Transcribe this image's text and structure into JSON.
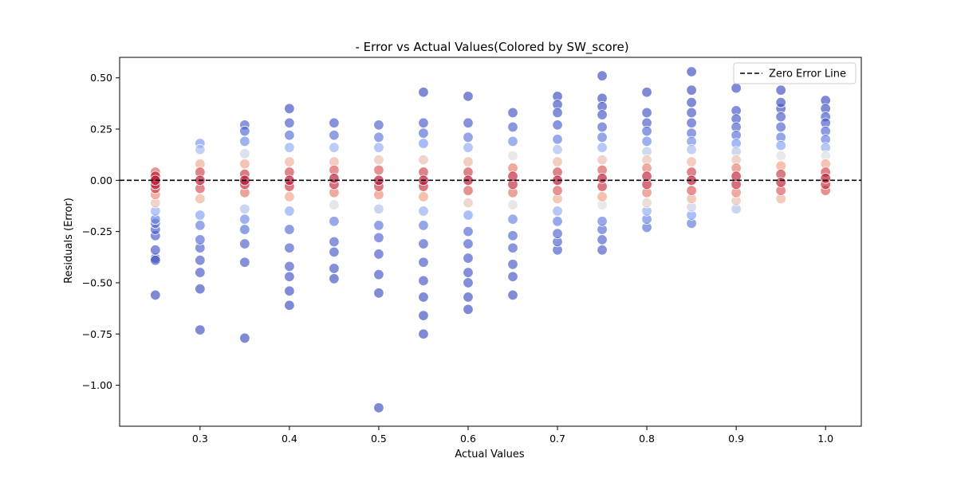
{
  "chart_data": {
    "type": "scatter",
    "title": "- Error vs Actual Values(Colored by SW_score)",
    "xlabel": "Actual Values",
    "ylabel": "Residuals (Error)",
    "xlim": [
      0.21,
      1.04
    ],
    "ylim": [
      -1.2,
      0.6
    ],
    "xticks": [
      0.3,
      0.4,
      0.5,
      0.6,
      0.7,
      0.8,
      0.9,
      1.0
    ],
    "xtick_labels": [
      "0.3",
      "0.4",
      "0.5",
      "0.6",
      "0.7",
      "0.8",
      "0.9",
      "1.0"
    ],
    "yticks": [
      0.5,
      0.25,
      0.0,
      -0.25,
      -0.5,
      -0.75,
      -1.0
    ],
    "ytick_labels": [
      "0.50",
      "0.25",
      "0.00",
      "−0.25",
      "−0.50",
      "−0.75",
      "−1.00"
    ],
    "grid": false,
    "colormap": "coolwarm",
    "point_alpha": 0.65,
    "reference_line": {
      "y": 0.0,
      "label": "Zero Error Line",
      "color": "#000000",
      "style": "dashed"
    },
    "legend": {
      "position": "top-right",
      "entries": [
        "Zero Error Line"
      ]
    },
    "color_scale_note": "points near zero error are red (high score), points far from zero are blue (low score)",
    "points": [
      {
        "x": 0.25,
        "y": -0.56,
        "c": 0.0
      },
      {
        "x": 0.25,
        "y": -0.39,
        "c": 0.02
      },
      {
        "x": 0.25,
        "y": -0.38,
        "c": 0.0
      },
      {
        "x": 0.25,
        "y": -0.34,
        "c": 0.02
      },
      {
        "x": 0.25,
        "y": -0.27,
        "c": 0.03
      },
      {
        "x": 0.25,
        "y": -0.24,
        "c": 0.05
      },
      {
        "x": 0.25,
        "y": -0.21,
        "c": 0.08
      },
      {
        "x": 0.25,
        "y": -0.19,
        "c": 0.15
      },
      {
        "x": 0.25,
        "y": -0.15,
        "c": 0.3
      },
      {
        "x": 0.25,
        "y": -0.11,
        "c": 0.62
      },
      {
        "x": 0.25,
        "y": -0.07,
        "c": 0.78
      },
      {
        "x": 0.25,
        "y": -0.04,
        "c": 0.92
      },
      {
        "x": 0.25,
        "y": -0.02,
        "c": 0.97
      },
      {
        "x": 0.25,
        "y": 0.0,
        "c": 1.0
      },
      {
        "x": 0.25,
        "y": 0.02,
        "c": 0.97
      },
      {
        "x": 0.25,
        "y": 0.04,
        "c": 0.85
      },
      {
        "x": 0.3,
        "y": -0.73,
        "c": 0.0
      },
      {
        "x": 0.3,
        "y": -0.53,
        "c": 0.01
      },
      {
        "x": 0.3,
        "y": -0.45,
        "c": 0.02
      },
      {
        "x": 0.3,
        "y": -0.39,
        "c": 0.04
      },
      {
        "x": 0.3,
        "y": -0.33,
        "c": 0.06
      },
      {
        "x": 0.3,
        "y": -0.29,
        "c": 0.09
      },
      {
        "x": 0.3,
        "y": -0.22,
        "c": 0.14
      },
      {
        "x": 0.3,
        "y": -0.17,
        "c": 0.25
      },
      {
        "x": 0.3,
        "y": -0.09,
        "c": 0.68
      },
      {
        "x": 0.3,
        "y": -0.04,
        "c": 0.88
      },
      {
        "x": 0.3,
        "y": 0.0,
        "c": 1.0
      },
      {
        "x": 0.3,
        "y": 0.04,
        "c": 0.9
      },
      {
        "x": 0.3,
        "y": 0.08,
        "c": 0.7
      },
      {
        "x": 0.3,
        "y": 0.15,
        "c": 0.35
      },
      {
        "x": 0.3,
        "y": 0.18,
        "c": 0.22
      },
      {
        "x": 0.35,
        "y": -0.77,
        "c": 0.0
      },
      {
        "x": 0.35,
        "y": -0.4,
        "c": 0.02
      },
      {
        "x": 0.35,
        "y": -0.31,
        "c": 0.05
      },
      {
        "x": 0.35,
        "y": -0.24,
        "c": 0.1
      },
      {
        "x": 0.35,
        "y": -0.19,
        "c": 0.18
      },
      {
        "x": 0.35,
        "y": -0.14,
        "c": 0.38
      },
      {
        "x": 0.35,
        "y": -0.06,
        "c": 0.82
      },
      {
        "x": 0.35,
        "y": -0.02,
        "c": 0.95
      },
      {
        "x": 0.35,
        "y": 0.0,
        "c": 1.0
      },
      {
        "x": 0.35,
        "y": 0.03,
        "c": 0.92
      },
      {
        "x": 0.35,
        "y": 0.08,
        "c": 0.72
      },
      {
        "x": 0.35,
        "y": 0.13,
        "c": 0.45
      },
      {
        "x": 0.35,
        "y": 0.19,
        "c": 0.18
      },
      {
        "x": 0.35,
        "y": 0.24,
        "c": 0.08
      },
      {
        "x": 0.35,
        "y": 0.27,
        "c": 0.05
      },
      {
        "x": 0.4,
        "y": -0.61,
        "c": 0.0
      },
      {
        "x": 0.4,
        "y": -0.54,
        "c": 0.01
      },
      {
        "x": 0.4,
        "y": -0.47,
        "c": 0.02
      },
      {
        "x": 0.4,
        "y": -0.42,
        "c": 0.03
      },
      {
        "x": 0.4,
        "y": -0.33,
        "c": 0.05
      },
      {
        "x": 0.4,
        "y": -0.24,
        "c": 0.09
      },
      {
        "x": 0.4,
        "y": -0.15,
        "c": 0.28
      },
      {
        "x": 0.4,
        "y": -0.08,
        "c": 0.72
      },
      {
        "x": 0.4,
        "y": -0.03,
        "c": 0.93
      },
      {
        "x": 0.4,
        "y": 0.0,
        "c": 1.0
      },
      {
        "x": 0.4,
        "y": 0.04,
        "c": 0.9
      },
      {
        "x": 0.4,
        "y": 0.09,
        "c": 0.68
      },
      {
        "x": 0.4,
        "y": 0.16,
        "c": 0.3
      },
      {
        "x": 0.4,
        "y": 0.22,
        "c": 0.1
      },
      {
        "x": 0.4,
        "y": 0.28,
        "c": 0.04
      },
      {
        "x": 0.4,
        "y": 0.35,
        "c": 0.0
      },
      {
        "x": 0.45,
        "y": -0.48,
        "c": 0.01
      },
      {
        "x": 0.45,
        "y": -0.43,
        "c": 0.02
      },
      {
        "x": 0.45,
        "y": -0.35,
        "c": 0.04
      },
      {
        "x": 0.45,
        "y": -0.3,
        "c": 0.06
      },
      {
        "x": 0.45,
        "y": -0.2,
        "c": 0.14
      },
      {
        "x": 0.45,
        "y": -0.12,
        "c": 0.48
      },
      {
        "x": 0.45,
        "y": -0.06,
        "c": 0.8
      },
      {
        "x": 0.45,
        "y": -0.02,
        "c": 0.95
      },
      {
        "x": 0.45,
        "y": 0.01,
        "c": 0.98
      },
      {
        "x": 0.45,
        "y": 0.05,
        "c": 0.86
      },
      {
        "x": 0.45,
        "y": 0.09,
        "c": 0.66
      },
      {
        "x": 0.45,
        "y": 0.16,
        "c": 0.32
      },
      {
        "x": 0.45,
        "y": 0.22,
        "c": 0.1
      },
      {
        "x": 0.45,
        "y": 0.28,
        "c": 0.04
      },
      {
        "x": 0.5,
        "y": -1.11,
        "c": 0.0
      },
      {
        "x": 0.5,
        "y": -0.55,
        "c": 0.01
      },
      {
        "x": 0.5,
        "y": -0.46,
        "c": 0.02
      },
      {
        "x": 0.5,
        "y": -0.36,
        "c": 0.04
      },
      {
        "x": 0.5,
        "y": -0.28,
        "c": 0.07
      },
      {
        "x": 0.5,
        "y": -0.22,
        "c": 0.11
      },
      {
        "x": 0.5,
        "y": -0.14,
        "c": 0.38
      },
      {
        "x": 0.5,
        "y": -0.07,
        "c": 0.78
      },
      {
        "x": 0.5,
        "y": -0.03,
        "c": 0.93
      },
      {
        "x": 0.5,
        "y": 0.0,
        "c": 1.0
      },
      {
        "x": 0.5,
        "y": 0.05,
        "c": 0.86
      },
      {
        "x": 0.5,
        "y": 0.1,
        "c": 0.62
      },
      {
        "x": 0.5,
        "y": 0.16,
        "c": 0.3
      },
      {
        "x": 0.5,
        "y": 0.21,
        "c": 0.12
      },
      {
        "x": 0.5,
        "y": 0.27,
        "c": 0.05
      },
      {
        "x": 0.55,
        "y": -0.75,
        "c": 0.0
      },
      {
        "x": 0.55,
        "y": -0.66,
        "c": 0.0
      },
      {
        "x": 0.55,
        "y": -0.57,
        "c": 0.01
      },
      {
        "x": 0.55,
        "y": -0.49,
        "c": 0.02
      },
      {
        "x": 0.55,
        "y": -0.4,
        "c": 0.03
      },
      {
        "x": 0.55,
        "y": -0.31,
        "c": 0.05
      },
      {
        "x": 0.55,
        "y": -0.22,
        "c": 0.12
      },
      {
        "x": 0.55,
        "y": -0.15,
        "c": 0.3
      },
      {
        "x": 0.55,
        "y": -0.08,
        "c": 0.74
      },
      {
        "x": 0.55,
        "y": -0.03,
        "c": 0.93
      },
      {
        "x": 0.55,
        "y": 0.0,
        "c": 1.0
      },
      {
        "x": 0.55,
        "y": 0.04,
        "c": 0.9
      },
      {
        "x": 0.55,
        "y": 0.1,
        "c": 0.62
      },
      {
        "x": 0.55,
        "y": 0.18,
        "c": 0.22
      },
      {
        "x": 0.55,
        "y": 0.23,
        "c": 0.09
      },
      {
        "x": 0.55,
        "y": 0.28,
        "c": 0.04
      },
      {
        "x": 0.55,
        "y": 0.43,
        "c": 0.0
      },
      {
        "x": 0.6,
        "y": -0.63,
        "c": 0.0
      },
      {
        "x": 0.6,
        "y": -0.57,
        "c": 0.01
      },
      {
        "x": 0.6,
        "y": -0.5,
        "c": 0.02
      },
      {
        "x": 0.6,
        "y": -0.45,
        "c": 0.02
      },
      {
        "x": 0.6,
        "y": -0.38,
        "c": 0.03
      },
      {
        "x": 0.6,
        "y": -0.31,
        "c": 0.05
      },
      {
        "x": 0.6,
        "y": -0.25,
        "c": 0.08
      },
      {
        "x": 0.6,
        "y": -0.17,
        "c": 0.24
      },
      {
        "x": 0.6,
        "y": -0.11,
        "c": 0.6
      },
      {
        "x": 0.6,
        "y": -0.05,
        "c": 0.86
      },
      {
        "x": 0.6,
        "y": 0.0,
        "c": 1.0
      },
      {
        "x": 0.6,
        "y": 0.04,
        "c": 0.9
      },
      {
        "x": 0.6,
        "y": 0.09,
        "c": 0.66
      },
      {
        "x": 0.6,
        "y": 0.16,
        "c": 0.3
      },
      {
        "x": 0.6,
        "y": 0.21,
        "c": 0.12
      },
      {
        "x": 0.6,
        "y": 0.28,
        "c": 0.04
      },
      {
        "x": 0.6,
        "y": 0.41,
        "c": 0.0
      },
      {
        "x": 0.65,
        "y": -0.56,
        "c": 0.01
      },
      {
        "x": 0.65,
        "y": -0.47,
        "c": 0.02
      },
      {
        "x": 0.65,
        "y": -0.41,
        "c": 0.03
      },
      {
        "x": 0.65,
        "y": -0.33,
        "c": 0.05
      },
      {
        "x": 0.65,
        "y": -0.27,
        "c": 0.07
      },
      {
        "x": 0.65,
        "y": -0.19,
        "c": 0.16
      },
      {
        "x": 0.65,
        "y": -0.12,
        "c": 0.52
      },
      {
        "x": 0.65,
        "y": -0.06,
        "c": 0.82
      },
      {
        "x": 0.65,
        "y": -0.02,
        "c": 0.95
      },
      {
        "x": 0.65,
        "y": 0.02,
        "c": 0.96
      },
      {
        "x": 0.65,
        "y": 0.06,
        "c": 0.8
      },
      {
        "x": 0.65,
        "y": 0.12,
        "c": 0.5
      },
      {
        "x": 0.65,
        "y": 0.19,
        "c": 0.18
      },
      {
        "x": 0.65,
        "y": 0.26,
        "c": 0.06
      },
      {
        "x": 0.65,
        "y": 0.33,
        "c": 0.02
      },
      {
        "x": 0.7,
        "y": -0.34,
        "c": 0.04
      },
      {
        "x": 0.7,
        "y": -0.3,
        "c": 0.06
      },
      {
        "x": 0.7,
        "y": -0.26,
        "c": 0.07
      },
      {
        "x": 0.7,
        "y": -0.2,
        "c": 0.14
      },
      {
        "x": 0.7,
        "y": -0.15,
        "c": 0.3
      },
      {
        "x": 0.7,
        "y": -0.09,
        "c": 0.68
      },
      {
        "x": 0.7,
        "y": -0.05,
        "c": 0.86
      },
      {
        "x": 0.7,
        "y": 0.0,
        "c": 1.0
      },
      {
        "x": 0.7,
        "y": 0.04,
        "c": 0.9
      },
      {
        "x": 0.7,
        "y": 0.09,
        "c": 0.66
      },
      {
        "x": 0.7,
        "y": 0.15,
        "c": 0.36
      },
      {
        "x": 0.7,
        "y": 0.2,
        "c": 0.14
      },
      {
        "x": 0.7,
        "y": 0.27,
        "c": 0.05
      },
      {
        "x": 0.7,
        "y": 0.33,
        "c": 0.02
      },
      {
        "x": 0.7,
        "y": 0.37,
        "c": 0.01
      },
      {
        "x": 0.7,
        "y": 0.41,
        "c": 0.0
      },
      {
        "x": 0.75,
        "y": -0.34,
        "c": 0.04
      },
      {
        "x": 0.75,
        "y": -0.29,
        "c": 0.06
      },
      {
        "x": 0.75,
        "y": -0.24,
        "c": 0.09
      },
      {
        "x": 0.75,
        "y": -0.2,
        "c": 0.14
      },
      {
        "x": 0.75,
        "y": -0.12,
        "c": 0.5
      },
      {
        "x": 0.75,
        "y": -0.08,
        "c": 0.74
      },
      {
        "x": 0.75,
        "y": -0.03,
        "c": 0.93
      },
      {
        "x": 0.75,
        "y": 0.01,
        "c": 0.98
      },
      {
        "x": 0.75,
        "y": 0.05,
        "c": 0.86
      },
      {
        "x": 0.75,
        "y": 0.1,
        "c": 0.62
      },
      {
        "x": 0.75,
        "y": 0.16,
        "c": 0.3
      },
      {
        "x": 0.75,
        "y": 0.21,
        "c": 0.12
      },
      {
        "x": 0.75,
        "y": 0.26,
        "c": 0.06
      },
      {
        "x": 0.75,
        "y": 0.32,
        "c": 0.02
      },
      {
        "x": 0.75,
        "y": 0.36,
        "c": 0.01
      },
      {
        "x": 0.75,
        "y": 0.4,
        "c": 0.0
      },
      {
        "x": 0.75,
        "y": 0.51,
        "c": 0.0
      },
      {
        "x": 0.8,
        "y": -0.23,
        "c": 0.1
      },
      {
        "x": 0.8,
        "y": -0.19,
        "c": 0.16
      },
      {
        "x": 0.8,
        "y": -0.15,
        "c": 0.3
      },
      {
        "x": 0.8,
        "y": -0.11,
        "c": 0.56
      },
      {
        "x": 0.8,
        "y": -0.06,
        "c": 0.8
      },
      {
        "x": 0.8,
        "y": -0.02,
        "c": 0.95
      },
      {
        "x": 0.8,
        "y": 0.02,
        "c": 0.96
      },
      {
        "x": 0.8,
        "y": 0.06,
        "c": 0.8
      },
      {
        "x": 0.8,
        "y": 0.1,
        "c": 0.62
      },
      {
        "x": 0.8,
        "y": 0.14,
        "c": 0.4
      },
      {
        "x": 0.8,
        "y": 0.19,
        "c": 0.18
      },
      {
        "x": 0.8,
        "y": 0.24,
        "c": 0.08
      },
      {
        "x": 0.8,
        "y": 0.28,
        "c": 0.04
      },
      {
        "x": 0.8,
        "y": 0.33,
        "c": 0.02
      },
      {
        "x": 0.8,
        "y": 0.43,
        "c": 0.0
      },
      {
        "x": 0.85,
        "y": -0.21,
        "c": 0.12
      },
      {
        "x": 0.85,
        "y": -0.17,
        "c": 0.24
      },
      {
        "x": 0.85,
        "y": -0.13,
        "c": 0.44
      },
      {
        "x": 0.85,
        "y": -0.09,
        "c": 0.68
      },
      {
        "x": 0.85,
        "y": -0.05,
        "c": 0.86
      },
      {
        "x": 0.85,
        "y": 0.0,
        "c": 1.0
      },
      {
        "x": 0.85,
        "y": 0.04,
        "c": 0.9
      },
      {
        "x": 0.85,
        "y": 0.09,
        "c": 0.66
      },
      {
        "x": 0.85,
        "y": 0.15,
        "c": 0.36
      },
      {
        "x": 0.85,
        "y": 0.19,
        "c": 0.18
      },
      {
        "x": 0.85,
        "y": 0.23,
        "c": 0.09
      },
      {
        "x": 0.85,
        "y": 0.28,
        "c": 0.04
      },
      {
        "x": 0.85,
        "y": 0.33,
        "c": 0.02
      },
      {
        "x": 0.85,
        "y": 0.38,
        "c": 0.01
      },
      {
        "x": 0.85,
        "y": 0.44,
        "c": 0.0
      },
      {
        "x": 0.85,
        "y": 0.53,
        "c": 0.0
      },
      {
        "x": 0.9,
        "y": -0.14,
        "c": 0.38
      },
      {
        "x": 0.9,
        "y": -0.1,
        "c": 0.62
      },
      {
        "x": 0.9,
        "y": -0.06,
        "c": 0.8
      },
      {
        "x": 0.9,
        "y": -0.02,
        "c": 0.95
      },
      {
        "x": 0.9,
        "y": 0.02,
        "c": 0.96
      },
      {
        "x": 0.9,
        "y": 0.06,
        "c": 0.8
      },
      {
        "x": 0.9,
        "y": 0.1,
        "c": 0.62
      },
      {
        "x": 0.9,
        "y": 0.14,
        "c": 0.4
      },
      {
        "x": 0.9,
        "y": 0.18,
        "c": 0.22
      },
      {
        "x": 0.9,
        "y": 0.22,
        "c": 0.1
      },
      {
        "x": 0.9,
        "y": 0.26,
        "c": 0.06
      },
      {
        "x": 0.9,
        "y": 0.3,
        "c": 0.03
      },
      {
        "x": 0.9,
        "y": 0.34,
        "c": 0.02
      },
      {
        "x": 0.9,
        "y": 0.45,
        "c": 0.0
      },
      {
        "x": 0.95,
        "y": -0.09,
        "c": 0.68
      },
      {
        "x": 0.95,
        "y": -0.05,
        "c": 0.86
      },
      {
        "x": 0.95,
        "y": -0.01,
        "c": 0.97
      },
      {
        "x": 0.95,
        "y": 0.03,
        "c": 0.92
      },
      {
        "x": 0.95,
        "y": 0.07,
        "c": 0.74
      },
      {
        "x": 0.95,
        "y": 0.12,
        "c": 0.5
      },
      {
        "x": 0.95,
        "y": 0.17,
        "c": 0.26
      },
      {
        "x": 0.95,
        "y": 0.21,
        "c": 0.12
      },
      {
        "x": 0.95,
        "y": 0.26,
        "c": 0.06
      },
      {
        "x": 0.95,
        "y": 0.31,
        "c": 0.03
      },
      {
        "x": 0.95,
        "y": 0.35,
        "c": 0.01
      },
      {
        "x": 0.95,
        "y": 0.38,
        "c": 0.01
      },
      {
        "x": 0.95,
        "y": 0.44,
        "c": 0.0
      },
      {
        "x": 1.0,
        "y": -0.05,
        "c": 0.86
      },
      {
        "x": 1.0,
        "y": -0.02,
        "c": 0.95
      },
      {
        "x": 1.0,
        "y": 0.01,
        "c": 0.98
      },
      {
        "x": 1.0,
        "y": 0.04,
        "c": 0.9
      },
      {
        "x": 1.0,
        "y": 0.08,
        "c": 0.72
      },
      {
        "x": 1.0,
        "y": 0.12,
        "c": 0.5
      },
      {
        "x": 1.0,
        "y": 0.16,
        "c": 0.3
      },
      {
        "x": 1.0,
        "y": 0.2,
        "c": 0.14
      },
      {
        "x": 1.0,
        "y": 0.24,
        "c": 0.08
      },
      {
        "x": 1.0,
        "y": 0.28,
        "c": 0.04
      },
      {
        "x": 1.0,
        "y": 0.31,
        "c": 0.03
      },
      {
        "x": 1.0,
        "y": 0.35,
        "c": 0.01
      },
      {
        "x": 1.0,
        "y": 0.39,
        "c": 0.0
      }
    ]
  }
}
